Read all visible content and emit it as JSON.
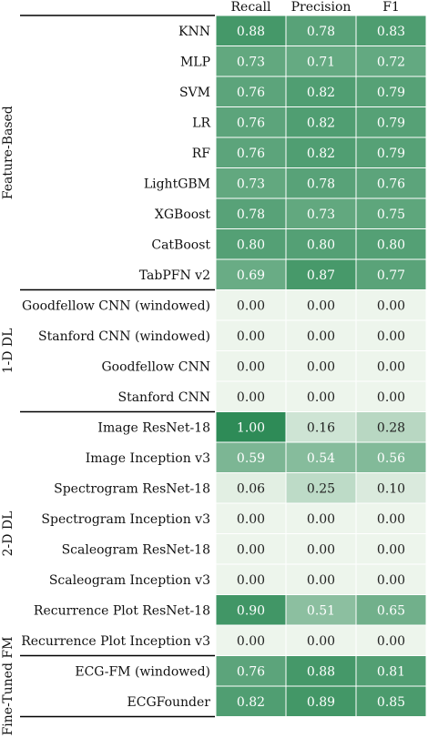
{
  "chart_data": {
    "type": "heatmap",
    "columns": [
      "Recall",
      "Precision",
      "F1"
    ],
    "groups": [
      {
        "name": "Feature-Based",
        "rows": [
          {
            "label": "KNN",
            "values": [
              "0.88",
              "0.78",
              "0.83"
            ]
          },
          {
            "label": "MLP",
            "values": [
              "0.73",
              "0.71",
              "0.72"
            ]
          },
          {
            "label": "SVM",
            "values": [
              "0.76",
              "0.82",
              "0.79"
            ]
          },
          {
            "label": "LR",
            "values": [
              "0.76",
              "0.82",
              "0.79"
            ]
          },
          {
            "label": "RF",
            "values": [
              "0.76",
              "0.82",
              "0.79"
            ]
          },
          {
            "label": "LightGBM",
            "values": [
              "0.73",
              "0.78",
              "0.76"
            ]
          },
          {
            "label": "XGBoost",
            "values": [
              "0.78",
              "0.73",
              "0.75"
            ]
          },
          {
            "label": "CatBoost",
            "values": [
              "0.80",
              "0.80",
              "0.80"
            ]
          },
          {
            "label": "TabPFN v2",
            "values": [
              "0.69",
              "0.87",
              "0.77"
            ]
          }
        ]
      },
      {
        "name": "1-D DL",
        "rows": [
          {
            "label": "Goodfellow CNN (windowed)",
            "values": [
              "0.00",
              "0.00",
              "0.00"
            ]
          },
          {
            "label": "Stanford CNN (windowed)",
            "values": [
              "0.00",
              "0.00",
              "0.00"
            ]
          },
          {
            "label": "Goodfellow CNN",
            "values": [
              "0.00",
              "0.00",
              "0.00"
            ]
          },
          {
            "label": "Stanford CNN",
            "values": [
              "0.00",
              "0.00",
              "0.00"
            ]
          }
        ]
      },
      {
        "name": "2-D DL",
        "rows": [
          {
            "label": "Image ResNet-18",
            "values": [
              "1.00",
              "0.16",
              "0.28"
            ]
          },
          {
            "label": "Image Inception v3",
            "values": [
              "0.59",
              "0.54",
              "0.56"
            ]
          },
          {
            "label": "Spectrogram ResNet-18",
            "values": [
              "0.06",
              "0.25",
              "0.10"
            ]
          },
          {
            "label": "Spectrogram Inception v3",
            "values": [
              "0.00",
              "0.00",
              "0.00"
            ]
          },
          {
            "label": "Scaleogram ResNet-18",
            "values": [
              "0.00",
              "0.00",
              "0.00"
            ]
          },
          {
            "label": "Scaleogram Inception v3",
            "values": [
              "0.00",
              "0.00",
              "0.00"
            ]
          },
          {
            "label": "Recurrence Plot ResNet-18",
            "values": [
              "0.90",
              "0.51",
              "0.65"
            ]
          },
          {
            "label": "Recurrence Plot Inception v3",
            "values": [
              "0.00",
              "0.00",
              "0.00"
            ]
          }
        ]
      },
      {
        "name": "Fine-Tuned FM",
        "rows": [
          {
            "label": "ECG-FM (windowed)",
            "values": [
              "0.76",
              "0.88",
              "0.81"
            ]
          },
          {
            "label": "ECGFounder",
            "values": [
              "0.82",
              "0.89",
              "0.85"
            ]
          }
        ]
      }
    ],
    "colormap": {
      "low": "#edf5ec",
      "high": "#2e8b57"
    },
    "vrange": [
      0,
      1
    ],
    "grid": false,
    "legend": "none"
  }
}
